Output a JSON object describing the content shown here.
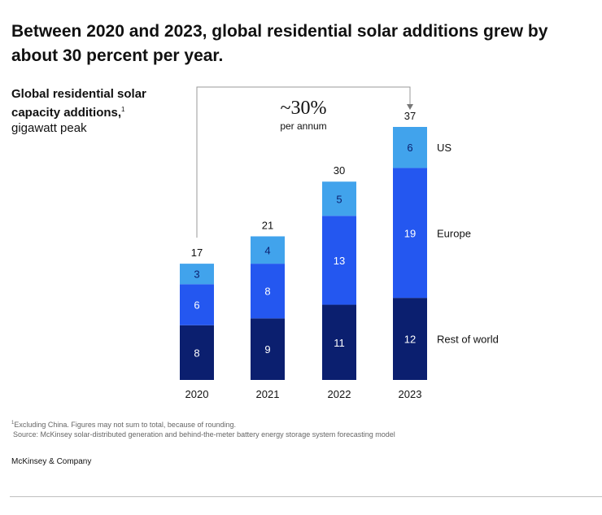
{
  "header": {
    "title": "Between 2020 and 2023, global residential solar additions grew by about 30 percent per year."
  },
  "footer": {
    "footnote_mark": "1",
    "footnote_text": "Excluding China. Figures may not sum to total, because of rounding.",
    "source": "Source: McKinsey solar-distributed generation and behind-the-meter battery energy storage system forecasting model",
    "brand": "McKinsey & Company"
  },
  "chart_data": {
    "type": "bar",
    "stacked": true,
    "title": "Global residential solar capacity additions,",
    "title_footnote": "1",
    "ylabel": "gigawatt peak",
    "xlabel": "",
    "categories": [
      "2020",
      "2021",
      "2022",
      "2023"
    ],
    "series": [
      {
        "name": "Rest of world",
        "color": "#0b1f6f",
        "values": [
          8,
          9,
          11,
          12
        ]
      },
      {
        "name": "Europe",
        "color": "#2457f0",
        "values": [
          6,
          8,
          13,
          19
        ]
      },
      {
        "name": "US",
        "color": "#41a3ec",
        "values": [
          3,
          4,
          5,
          6
        ]
      }
    ],
    "totals": [
      17,
      21,
      30,
      37
    ],
    "ylim": [
      0,
      37
    ],
    "grid": false,
    "annotation": {
      "text": "~30%",
      "subtext": "per annum",
      "from": "2020",
      "to": "2023"
    }
  },
  "colors": {
    "label_dark": "#ffffff",
    "label_light": "#0b1f6f",
    "text": "#111111",
    "annotation_line": "#999999"
  }
}
